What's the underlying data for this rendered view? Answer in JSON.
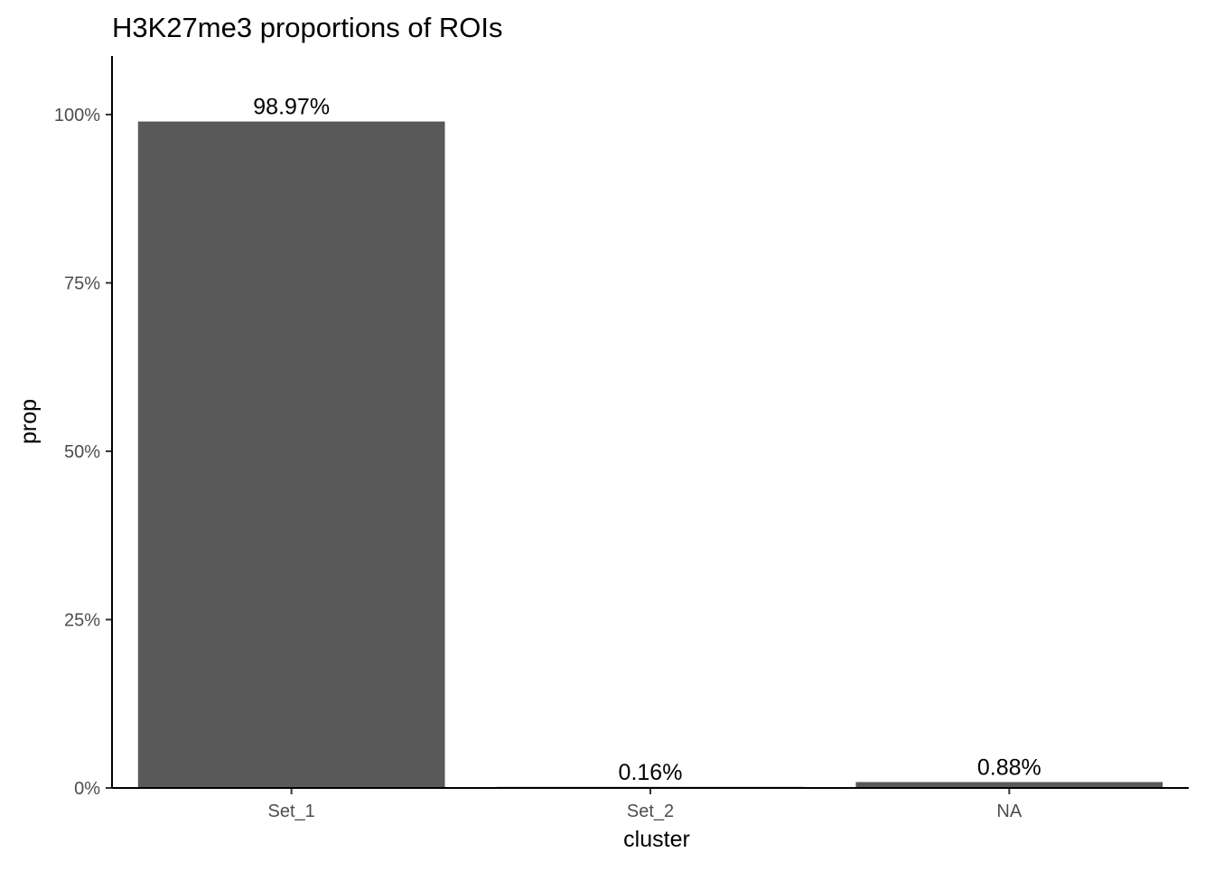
{
  "chart_data": {
    "type": "bar",
    "title": "H3K27me3 proportions of ROIs",
    "xlabel": "cluster",
    "ylabel": "prop",
    "categories": [
      "Set_1",
      "Set_2",
      "NA"
    ],
    "values": [
      98.97,
      0.16,
      0.88
    ],
    "data_labels": [
      "98.97%",
      "0.16%",
      "0.88%"
    ],
    "ylim": [
      0,
      108.7
    ],
    "yticks": [
      0,
      25,
      50,
      75,
      100
    ],
    "ytick_labels": [
      "0%",
      "25%",
      "50%",
      "75%",
      "100%"
    ],
    "grid": false,
    "legend": "none",
    "bar_color": "#595959"
  }
}
